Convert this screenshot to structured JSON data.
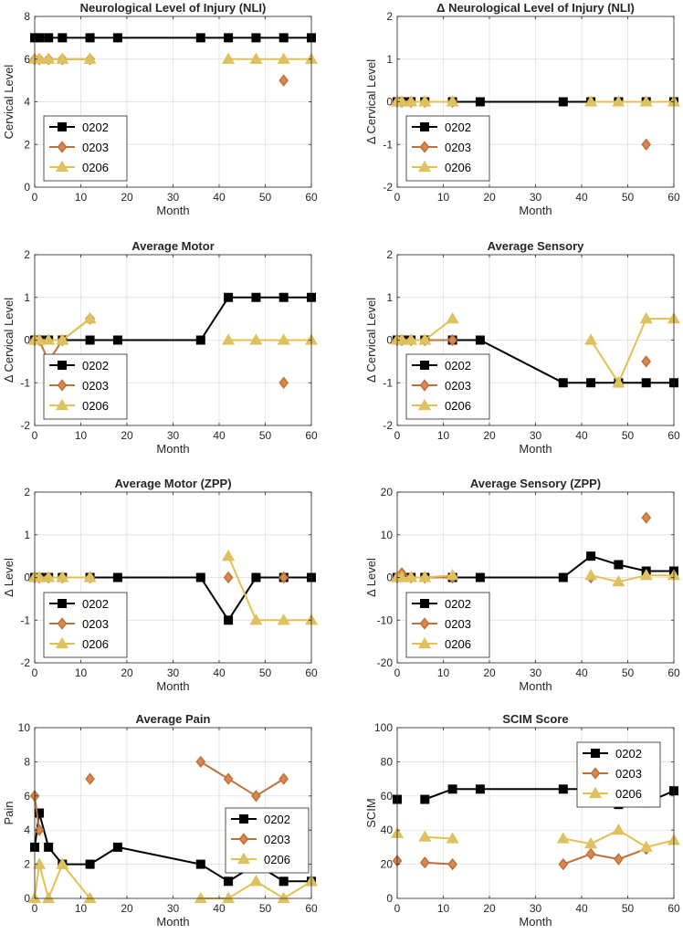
{
  "figure": {
    "legend_labels": [
      "0202",
      "0203",
      "0206"
    ],
    "series_colors": {
      "0202": "#000000",
      "0203": "#c0703a",
      "0206": "#e3c050"
    },
    "marker_colors": {
      "0202": "#000000",
      "0203": "#d8874e",
      "0206": "#dcc266"
    },
    "markers": {
      "0202": "square",
      "0203": "diamond",
      "0206": "triangle"
    }
  },
  "chart_data": [
    {
      "type": "line",
      "title": "Neurological Level of Injury (NLI)",
      "xlabel": "Month",
      "ylabel": "Cervical Level",
      "xlim": [
        0,
        60
      ],
      "ylim": [
        0,
        8
      ],
      "xticks": [
        0,
        10,
        20,
        30,
        40,
        50,
        60
      ],
      "yticks": [
        0,
        2,
        4,
        6,
        8
      ],
      "grid": true,
      "legend_position": "bottom-left",
      "series": [
        {
          "name": "0202",
          "x": [
            0,
            1,
            3,
            6,
            12,
            18,
            36,
            42,
            48,
            54,
            60
          ],
          "y": [
            7,
            7,
            7,
            7,
            7,
            7,
            7,
            7,
            7,
            7,
            7
          ]
        },
        {
          "name": "0203",
          "x": [
            0,
            1,
            3,
            6,
            12,
            null,
            54
          ],
          "y": [
            6,
            6,
            6,
            6,
            6,
            null,
            5
          ]
        },
        {
          "name": "0206",
          "x": [
            0,
            1,
            3,
            6,
            12,
            null,
            42,
            48,
            54,
            60
          ],
          "y": [
            6,
            6,
            6,
            6,
            6,
            null,
            6,
            6,
            6,
            6
          ]
        }
      ]
    },
    {
      "type": "line",
      "title": "Δ Neurological Level of Injury (NLI)",
      "xlabel": "Month",
      "ylabel": "Δ Cervical Level",
      "xlim": [
        0,
        60
      ],
      "ylim": [
        -2,
        2
      ],
      "xticks": [
        0,
        10,
        20,
        30,
        40,
        50,
        60
      ],
      "yticks": [
        -2,
        -1,
        0,
        1,
        2
      ],
      "grid": true,
      "legend_position": "bottom-left",
      "series": [
        {
          "name": "0202",
          "x": [
            0,
            1,
            3,
            6,
            12,
            18,
            36,
            42,
            48,
            54,
            60
          ],
          "y": [
            0,
            0,
            0,
            0,
            0,
            0,
            0,
            0,
            0,
            0,
            0
          ]
        },
        {
          "name": "0203",
          "x": [
            0,
            1,
            3,
            6,
            12,
            null,
            54
          ],
          "y": [
            0,
            0,
            0,
            0,
            0,
            null,
            -1
          ]
        },
        {
          "name": "0206",
          "x": [
            0,
            1,
            3,
            6,
            12,
            null,
            42,
            48,
            54,
            60
          ],
          "y": [
            0,
            0,
            0,
            0,
            0,
            null,
            0,
            0,
            0,
            0
          ]
        }
      ]
    },
    {
      "type": "line",
      "title": "Average Motor",
      "xlabel": "Month",
      "ylabel": "Δ Cervical Level",
      "xlim": [
        0,
        60
      ],
      "ylim": [
        -2,
        2
      ],
      "xticks": [
        0,
        10,
        20,
        30,
        40,
        50,
        60
      ],
      "yticks": [
        -2,
        -1,
        0,
        1,
        2
      ],
      "grid": true,
      "legend_position": "bottom-left",
      "series": [
        {
          "name": "0202",
          "x": [
            0,
            1,
            3,
            6,
            12,
            18,
            36,
            42,
            48,
            54,
            60
          ],
          "y": [
            0,
            0,
            0,
            0,
            0,
            0,
            0,
            1,
            1,
            1,
            1
          ]
        },
        {
          "name": "0203",
          "x": [
            0,
            1,
            3,
            6,
            12,
            null,
            54
          ],
          "y": [
            0,
            0,
            -0.5,
            0,
            0.5,
            null,
            -1
          ]
        },
        {
          "name": "0206",
          "x": [
            0,
            1,
            3,
            6,
            12,
            null,
            42,
            48,
            54,
            60
          ],
          "y": [
            0,
            0,
            0,
            0,
            0.5,
            null,
            0,
            0,
            0,
            0
          ]
        }
      ]
    },
    {
      "type": "line",
      "title": "Average Sensory",
      "xlabel": "Month",
      "ylabel": "Δ Cervical Level",
      "xlim": [
        0,
        60
      ],
      "ylim": [
        -2,
        2
      ],
      "xticks": [
        0,
        10,
        20,
        30,
        40,
        50,
        60
      ],
      "yticks": [
        -2,
        -1,
        0,
        1,
        2
      ],
      "grid": true,
      "legend_position": "bottom-left",
      "series": [
        {
          "name": "0202",
          "x": [
            0,
            1,
            3,
            6,
            12,
            18,
            36,
            42,
            48,
            54,
            60
          ],
          "y": [
            0,
            0,
            0,
            0,
            0,
            0,
            -1,
            -1,
            -1,
            -1,
            -1
          ]
        },
        {
          "name": "0203",
          "x": [
            0,
            1,
            3,
            6,
            12,
            null,
            54
          ],
          "y": [
            0,
            0,
            0,
            0,
            0,
            null,
            -0.5
          ]
        },
        {
          "name": "0206",
          "x": [
            0,
            1,
            3,
            6,
            12,
            null,
            42,
            48,
            54,
            60
          ],
          "y": [
            0,
            0,
            0,
            0,
            0.5,
            null,
            0,
            -1,
            0.5,
            0.5
          ]
        }
      ]
    },
    {
      "type": "line",
      "title": "Average Motor (ZPP)",
      "xlabel": "Month",
      "ylabel": "Δ Level",
      "xlim": [
        0,
        60
      ],
      "ylim": [
        -2,
        2
      ],
      "xticks": [
        0,
        10,
        20,
        30,
        40,
        50,
        60
      ],
      "yticks": [
        -2,
        -1,
        0,
        1,
        2
      ],
      "grid": true,
      "legend_position": "bottom-left",
      "series": [
        {
          "name": "0202",
          "x": [
            0,
            1,
            3,
            6,
            12,
            18,
            36,
            42,
            48,
            54,
            60
          ],
          "y": [
            0,
            0,
            0,
            0,
            0,
            0,
            0,
            -1,
            0,
            0,
            0
          ]
        },
        {
          "name": "0203",
          "x": [
            0,
            1,
            3,
            6,
            12,
            null,
            42,
            null,
            54
          ],
          "y": [
            0,
            0,
            0,
            0,
            0,
            null,
            0,
            null,
            0
          ]
        },
        {
          "name": "0206",
          "x": [
            0,
            1,
            3,
            6,
            12,
            null,
            42,
            48,
            54,
            60
          ],
          "y": [
            0,
            0,
            0,
            0,
            0,
            null,
            0.5,
            -1,
            -1,
            -1
          ]
        }
      ]
    },
    {
      "type": "line",
      "title": "Average Sensory (ZPP)",
      "xlabel": "Month",
      "ylabel": "Δ Level",
      "xlim": [
        0,
        60
      ],
      "ylim": [
        -20,
        20
      ],
      "xticks": [
        0,
        10,
        20,
        30,
        40,
        50,
        60
      ],
      "yticks": [
        -20,
        -10,
        0,
        10,
        20
      ],
      "grid": true,
      "legend_position": "bottom-left",
      "series": [
        {
          "name": "0202",
          "x": [
            0,
            1,
            3,
            6,
            12,
            18,
            36,
            42,
            48,
            54,
            60
          ],
          "y": [
            0,
            0,
            0,
            0,
            0,
            0,
            0,
            5,
            3,
            1.5,
            1.5
          ]
        },
        {
          "name": "0203",
          "x": [
            0,
            1,
            3,
            6,
            12,
            null,
            42,
            null,
            54
          ],
          "y": [
            0,
            1,
            0,
            0,
            0,
            null,
            0,
            null,
            14
          ]
        },
        {
          "name": "0206",
          "x": [
            0,
            1,
            3,
            6,
            12,
            null,
            42,
            48,
            54,
            60
          ],
          "y": [
            0,
            0,
            0,
            0,
            0.5,
            null,
            0.5,
            -1,
            0.5,
            0.5
          ]
        }
      ]
    },
    {
      "type": "line",
      "title": "Average Pain",
      "xlabel": "Month",
      "ylabel": "Pain",
      "xlim": [
        0,
        60
      ],
      "ylim": [
        0,
        10
      ],
      "xticks": [
        0,
        10,
        20,
        30,
        40,
        50,
        60
      ],
      "yticks": [
        0,
        2,
        4,
        6,
        8,
        10
      ],
      "grid": true,
      "legend_position": "right",
      "series": [
        {
          "name": "0202",
          "x": [
            0,
            1,
            3,
            6,
            12,
            18,
            36,
            42,
            48,
            54,
            60
          ],
          "y": [
            3,
            5,
            3,
            2,
            2,
            3,
            2,
            1,
            2,
            1,
            1
          ]
        },
        {
          "name": "0203",
          "x": [
            0,
            1,
            null,
            12,
            null,
            36,
            42,
            48,
            54
          ],
          "y": [
            6,
            4,
            null,
            7,
            null,
            8,
            7,
            6,
            7
          ]
        },
        {
          "name": "0206",
          "x": [
            0,
            1,
            3,
            6,
            12,
            null,
            36,
            42,
            48,
            54,
            60
          ],
          "y": [
            0,
            2,
            0,
            2,
            0,
            null,
            0,
            0,
            1,
            0,
            1
          ]
        }
      ]
    },
    {
      "type": "line",
      "title": "SCIM Score",
      "xlabel": "Month",
      "ylabel": "SCIM",
      "xlim": [
        0,
        60
      ],
      "ylim": [
        0,
        100
      ],
      "xticks": [
        0,
        10,
        20,
        30,
        40,
        50,
        60
      ],
      "yticks": [
        0,
        20,
        40,
        60,
        80,
        100
      ],
      "grid": true,
      "legend_position": "top-right",
      "series": [
        {
          "name": "0202",
          "x": [
            0,
            null,
            6,
            12,
            18,
            36,
            42,
            48,
            54,
            60
          ],
          "y": [
            58,
            null,
            58,
            64,
            64,
            64,
            64,
            55,
            56,
            63
          ]
        },
        {
          "name": "0203",
          "x": [
            0,
            null,
            6,
            12,
            null,
            36,
            42,
            48,
            54
          ],
          "y": [
            22,
            null,
            21,
            20,
            null,
            20,
            26,
            23,
            29
          ]
        },
        {
          "name": "0206",
          "x": [
            0,
            null,
            6,
            12,
            null,
            36,
            42,
            48,
            54,
            60
          ],
          "y": [
            38,
            null,
            36,
            35,
            null,
            35,
            32,
            40,
            30,
            34
          ]
        }
      ]
    }
  ]
}
